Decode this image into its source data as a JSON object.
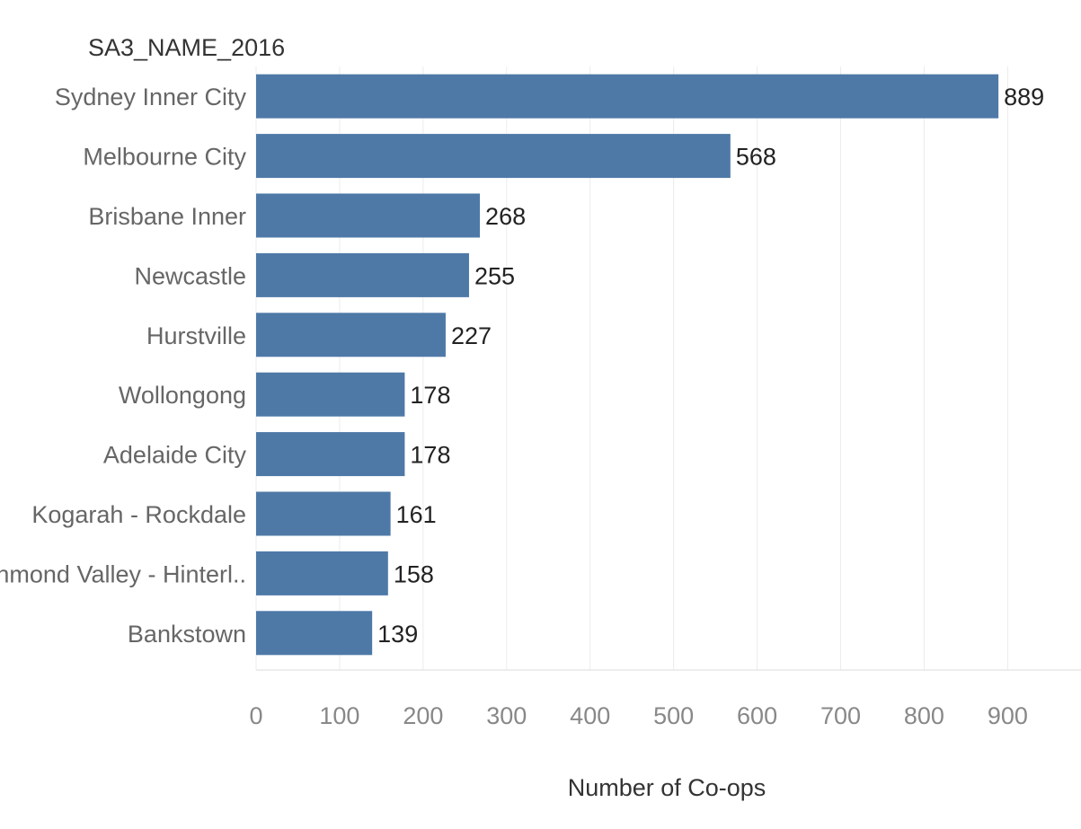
{
  "chart_data": {
    "type": "bar",
    "orientation": "horizontal",
    "row_header": "SA3_NAME_2016",
    "xlabel": "Number of Co-ops",
    "categories": [
      "Sydney Inner City",
      "Melbourne City",
      "Brisbane Inner",
      "Newcastle",
      "Hurstville",
      "Wollongong",
      "Adelaide City",
      "Kogarah - Rockdale",
      "Richmond Valley - Hinterl..",
      "Bankstown"
    ],
    "values": [
      889,
      568,
      268,
      255,
      227,
      178,
      178,
      161,
      158,
      139
    ],
    "xlim": [
      0,
      990
    ],
    "xticks": [
      0,
      100,
      200,
      300,
      400,
      500,
      600,
      700,
      800,
      900
    ],
    "grid": true,
    "bar_color": "#4e79a7"
  }
}
